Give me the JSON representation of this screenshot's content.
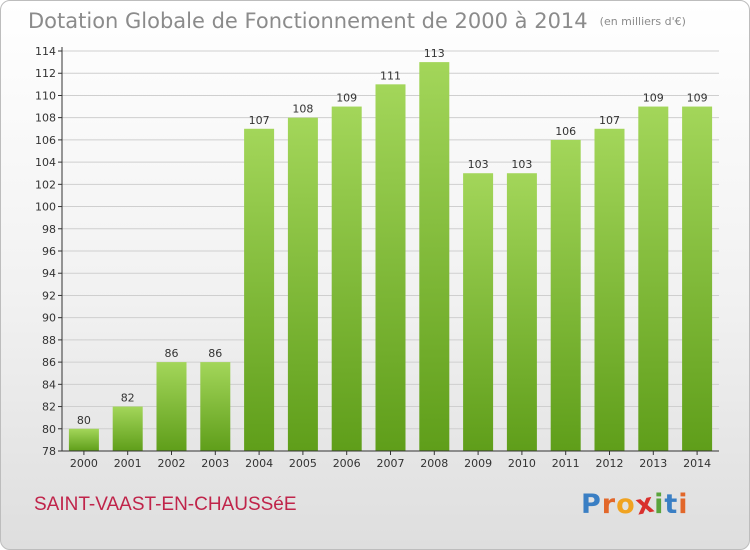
{
  "header": {
    "title": "Dotation Globale de Fonctionnement de 2000 à 2014",
    "unit": "(en milliers d'€)"
  },
  "footer": {
    "commune": "SAINT-VAAST-EN-CHAUSSéE",
    "logo_letters": [
      "P",
      "r",
      "o",
      "x",
      "i",
      "t",
      "i"
    ],
    "logo_colors": [
      "#3a7fc4",
      "#e2672a",
      "#f0a321",
      "#d9302d",
      "#5aa43c",
      "#3a7fc4",
      "#e2672a"
    ]
  },
  "colors": {
    "bar_light": "#a3d65a",
    "bar_dark": "#5f9e1a",
    "axis": "#333333",
    "grid": "#cfcfcf",
    "label": "#333333"
  },
  "chart_data": {
    "type": "bar",
    "categories": [
      "2000",
      "2001",
      "2002",
      "2003",
      "2004",
      "2005",
      "2006",
      "2007",
      "2008",
      "2009",
      "2010",
      "2011",
      "2012",
      "2013",
      "2014"
    ],
    "values": [
      80,
      82,
      86,
      86,
      107,
      108,
      109,
      111,
      113,
      103,
      103,
      106,
      107,
      109,
      109
    ],
    "title": "Dotation Globale de Fonctionnement de 2000 à 2014",
    "ylim": [
      78,
      114
    ],
    "yticks": [
      78,
      80,
      82,
      84,
      86,
      88,
      90,
      92,
      94,
      96,
      98,
      100,
      102,
      104,
      106,
      108,
      110,
      112,
      114
    ],
    "grid": true
  }
}
